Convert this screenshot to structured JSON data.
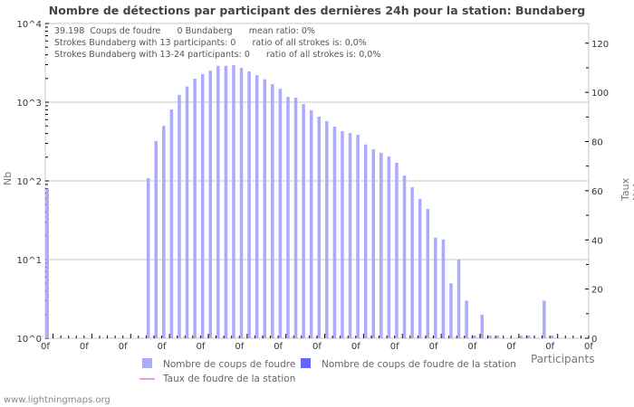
{
  "title": "Nombre de détections par participant des dernières 24h pour la station: Bundaberg",
  "info_lines": [
    "39.198  Coups de foudre      0 Bundaberg      mean ratio: 0%",
    "Strokes Bundaberg with 13 participants: 0      ratio of all strokes is: 0,0%",
    "Strokes Bundaberg with 13-24 participants: 0      ratio of all strokes is: 0,0%"
  ],
  "axes": {
    "y_left_label": "Nb",
    "y_right_label": "Taux [%]",
    "x_label": "Participants",
    "y_left_ticks": [
      "10^0",
      "10^1",
      "10^2",
      "10^3",
      "10^4"
    ],
    "y_right_ticks": [
      "0",
      "20",
      "40",
      "60",
      "80",
      "100",
      "120"
    ],
    "x_tick_label": "0f"
  },
  "legend": {
    "strokes": "Nombre de coups de foudre",
    "station_strokes": "Nombre de coups de foudre de la station",
    "station_rate": "Taux de foudre de la station"
  },
  "footer": "www.lightningmaps.org",
  "colors": {
    "bar": "#aaaaff",
    "station_bar": "#6666ff",
    "rate_line": "#e899e8",
    "grid": "#c8c8c8"
  },
  "chart_data": {
    "type": "bar",
    "title": "Nombre de détections par participant des dernières 24h pour la station: Bundaberg",
    "xlabel": "Participants",
    "ylabel": "Nb",
    "ylabel_right": "Taux [%]",
    "yscale": "log",
    "ylim": [
      1,
      10000
    ],
    "ylim_right": [
      0,
      128
    ],
    "grid": true,
    "legend_position": "bottom",
    "x_tick_labels": [
      "0f",
      "0f",
      "0f",
      "0f",
      "0f",
      "0f",
      "0f",
      "0f",
      "0f",
      "0f",
      "0f",
      "0f",
      "0f",
      "0f",
      "0f"
    ],
    "categories_count": 70,
    "series": [
      {
        "name": "Nombre de coups de foudre",
        "values": [
          80,
          0,
          0,
          0,
          0,
          0,
          0,
          0,
          0,
          0,
          0,
          0,
          0,
          108,
          320,
          500,
          810,
          1240,
          1580,
          1990,
          2270,
          2520,
          2900,
          2900,
          2960,
          2730,
          2460,
          2200,
          1950,
          1700,
          1480,
          1170,
          1140,
          950,
          790,
          655,
          575,
          490,
          430,
          405,
          385,
          290,
          252,
          228,
          204,
          170,
          117,
          83,
          59,
          44,
          19,
          18,
          5,
          10,
          3,
          1,
          2,
          1,
          1,
          0,
          0,
          1,
          1,
          0,
          3,
          1,
          0,
          0,
          0,
          0
        ]
      },
      {
        "name": "Nombre de coups de foudre de la station",
        "values": [
          0,
          0,
          0,
          0,
          0,
          0,
          0,
          0,
          0,
          0,
          0,
          0,
          0,
          0,
          0,
          0,
          0,
          0,
          0,
          0,
          0,
          0,
          0,
          0,
          0,
          0,
          0,
          0,
          0,
          0,
          0,
          0,
          0,
          0,
          0,
          0,
          0,
          0,
          0,
          0,
          0,
          0,
          0,
          0,
          0,
          0,
          0,
          0,
          0,
          0,
          0,
          0,
          0,
          0,
          0,
          0,
          0,
          0,
          0,
          0,
          0,
          0,
          0,
          0,
          0,
          0,
          0,
          0,
          0,
          0
        ]
      },
      {
        "name": "Taux de foudre de la station",
        "type": "line",
        "values": []
      }
    ]
  }
}
